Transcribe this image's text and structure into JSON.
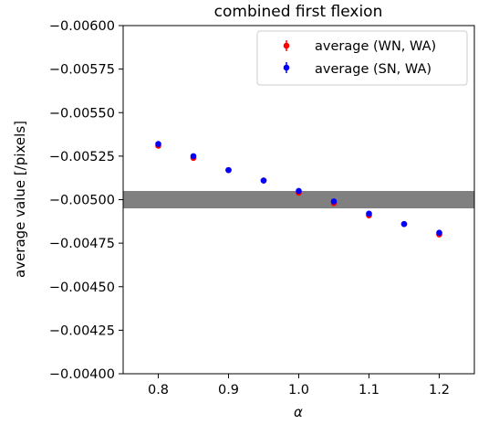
{
  "chart_data": {
    "type": "scatter",
    "title": "combined first flexion",
    "xlabel": "α",
    "ylabel": "average value [/pixels]",
    "xlim": [
      0.75,
      1.25
    ],
    "ylim": [
      -0.004,
      -0.006
    ],
    "y_inverted": true,
    "grid": false,
    "legend_position": "top-right",
    "x_ticks": [
      0.8,
      0.9,
      1.0,
      1.1,
      1.2
    ],
    "x_tick_labels": [
      "0.8",
      "0.9",
      "1.0",
      "1.1",
      "1.2"
    ],
    "y_ticks": [
      -0.006,
      -0.00575,
      -0.0055,
      -0.00525,
      -0.005,
      -0.00475,
      -0.0045,
      -0.00425,
      -0.004
    ],
    "y_tick_labels": [
      "−0.00600",
      "−0.00575",
      "−0.00550",
      "−0.00525",
      "−0.00500",
      "−0.00475",
      "−0.00450",
      "−0.00425",
      "−0.00400"
    ],
    "band": {
      "y_from": -0.00495,
      "y_to": -0.00505,
      "color": "#808080"
    },
    "series": [
      {
        "name": "average (WN, WA)",
        "color": "#ff0000",
        "x": [
          0.8,
          0.85,
          0.9,
          0.95,
          1.0,
          1.05,
          1.1,
          1.15,
          1.2
        ],
        "y": [
          -0.00531,
          -0.00524,
          -0.00517,
          -0.00511,
          -0.00504,
          -0.00498,
          -0.00491,
          -0.00486,
          -0.0048
        ]
      },
      {
        "name": "average (SN, WA)",
        "color": "#0000ff",
        "x": [
          0.8,
          0.85,
          0.9,
          0.95,
          1.0,
          1.05,
          1.1,
          1.15,
          1.2
        ],
        "y": [
          -0.00532,
          -0.00525,
          -0.00517,
          -0.00511,
          -0.00505,
          -0.00499,
          -0.00492,
          -0.00486,
          -0.00481
        ]
      }
    ]
  }
}
